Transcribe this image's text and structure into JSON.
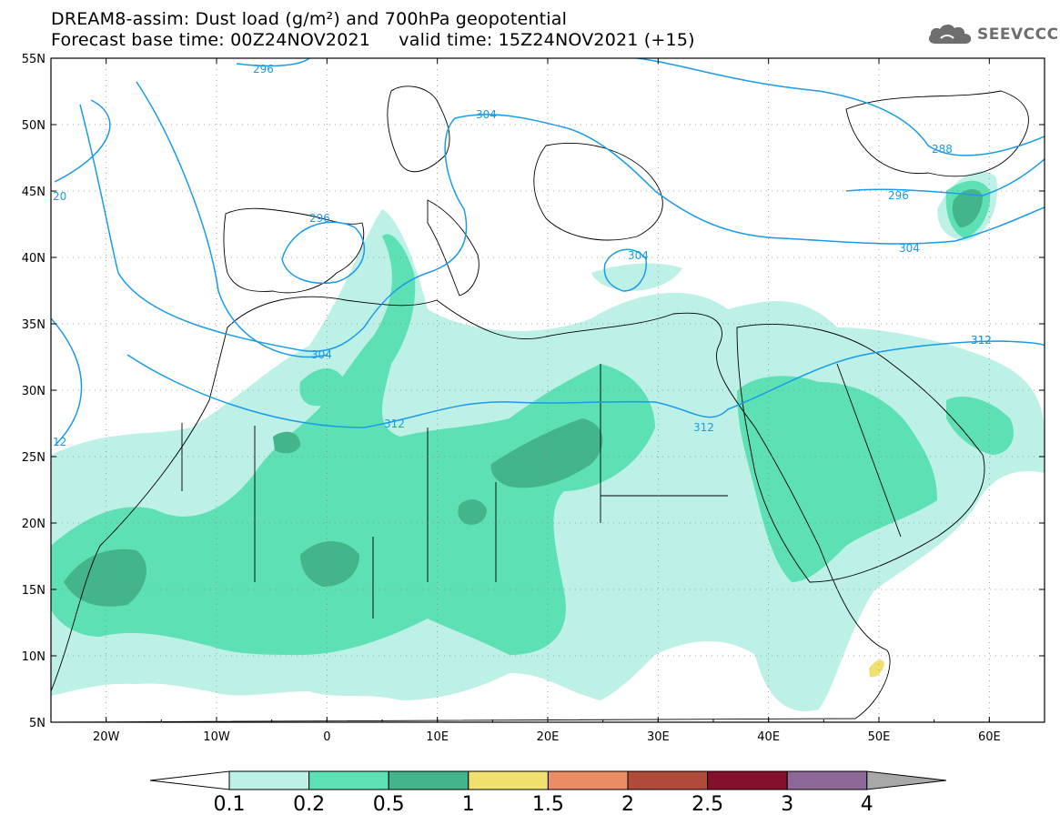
{
  "header": {
    "title_line1": "DREAM8-assim: Dust load (g/m²) and 700hPa geopotential",
    "title_line2": "Forecast base time: 00Z24NOV2021     valid time: 15Z24NOV2021 (+15)",
    "logo_text": "SEEVCCC",
    "logo_icon": "cloud-icon"
  },
  "map": {
    "lat_labels": [
      "55N",
      "50N",
      "45N",
      "40N",
      "35N",
      "30N",
      "25N",
      "20N",
      "15N",
      "10N",
      "5N"
    ],
    "lon_labels": [
      "20W",
      "10W",
      "0",
      "10E",
      "20E",
      "30E",
      "40E",
      "50E",
      "60E"
    ],
    "contour_color": "#1a9be8",
    "contour_labels": [
      "296",
      "304",
      "288",
      "20",
      "296",
      "304",
      "296",
      "304",
      "304",
      "312",
      "312",
      "312",
      "312",
      "12"
    ]
  },
  "colorbar": {
    "tick_labels": [
      "0.1",
      "0.2",
      "0.5",
      "1",
      "1.5",
      "2",
      "2.5",
      "3",
      "4"
    ],
    "colors": [
      "#ffffff",
      "#bdf0e6",
      "#5ce0b4",
      "#44b48a",
      "#f0e06e",
      "#ec8c64",
      "#b04a3a",
      "#84102c",
      "#8c6896",
      "#a8a8a8"
    ]
  }
}
